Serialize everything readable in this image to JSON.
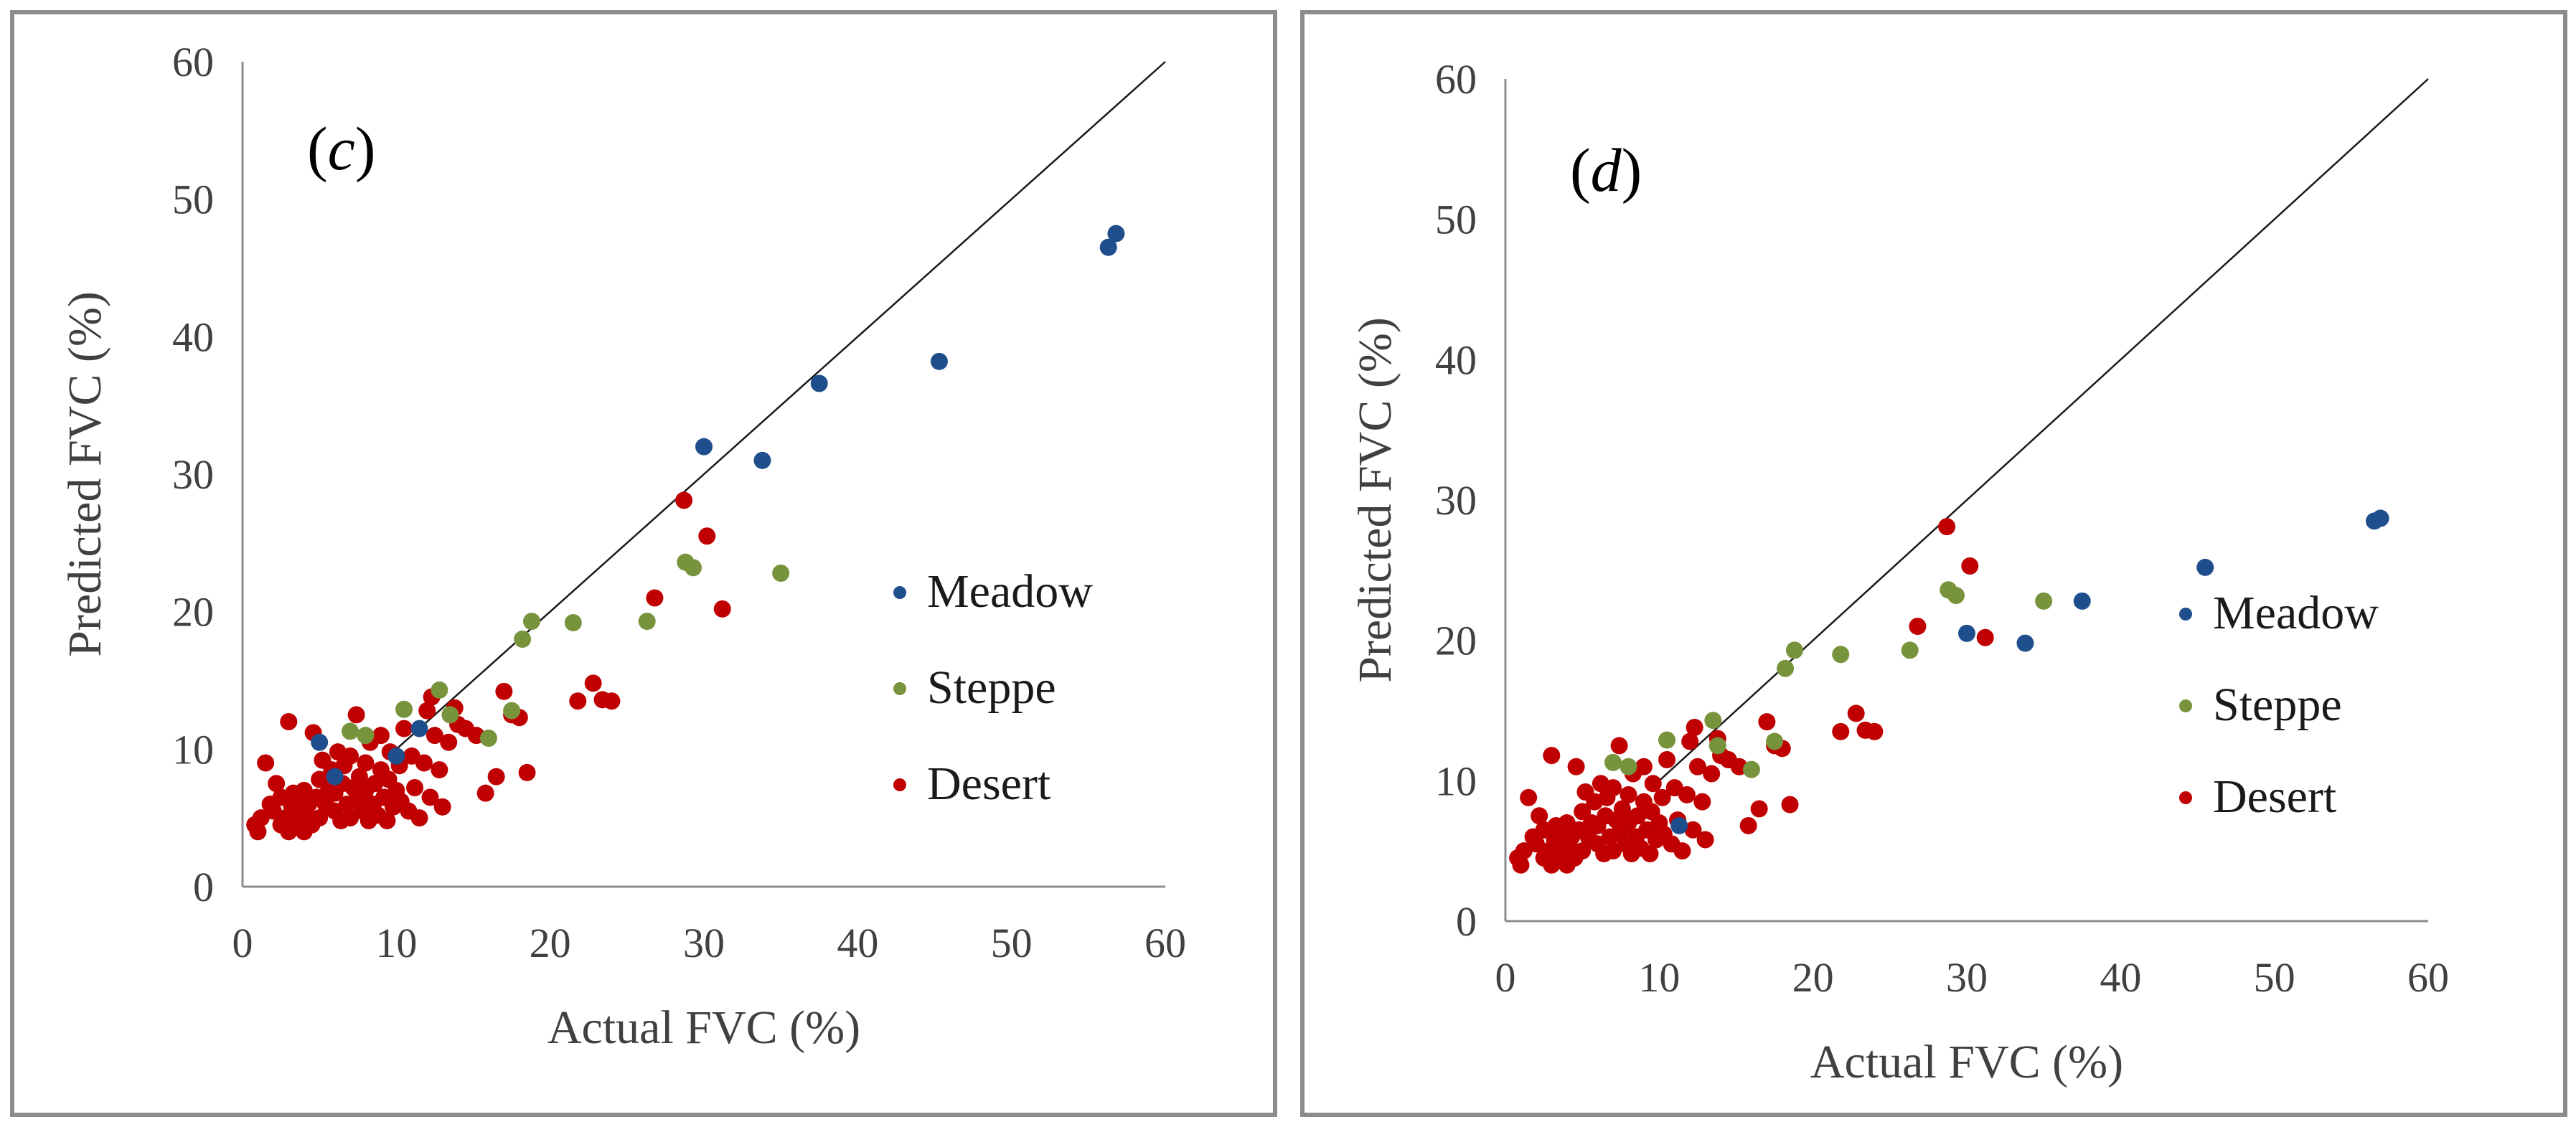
{
  "chart_data": [
    {
      "type": "scatter",
      "panel_label": "(c)",
      "xlabel": "Actual  FVC (%)",
      "ylabel": "Predicted  FVC (%)",
      "xlim": [
        0,
        60
      ],
      "ylim": [
        0,
        60
      ],
      "xticks": [
        "0",
        "10",
        "20",
        "30",
        "40",
        "50",
        "60"
      ],
      "yticks": [
        "0",
        "10",
        "20",
        "30",
        "40",
        "50",
        "60"
      ],
      "grid": false,
      "legend_position": "right",
      "reference_line": {
        "from": [
          10,
          10
        ],
        "to": [
          60,
          60
        ]
      },
      "series": [
        {
          "name": "Meadow",
          "color": "#1f4e8c",
          "points": [
            [
              5.0,
              10.5
            ],
            [
              6.0,
              8.0
            ],
            [
              10.0,
              9.5
            ],
            [
              11.5,
              11.5
            ],
            [
              30.0,
              32.0
            ],
            [
              33.8,
              31.0
            ],
            [
              37.5,
              36.6
            ],
            [
              45.3,
              38.2
            ],
            [
              56.3,
              46.5
            ],
            [
              56.8,
              47.5
            ]
          ]
        },
        {
          "name": "Steppe",
          "color": "#77933c",
          "points": [
            [
              7.0,
              11.3
            ],
            [
              8.0,
              11.0
            ],
            [
              10.5,
              12.9
            ],
            [
              12.8,
              14.3
            ],
            [
              13.5,
              12.5
            ],
            [
              16.0,
              10.8
            ],
            [
              17.5,
              12.8
            ],
            [
              18.2,
              18.0
            ],
            [
              18.8,
              19.3
            ],
            [
              21.5,
              19.2
            ],
            [
              26.3,
              19.3
            ],
            [
              28.8,
              23.6
            ],
            [
              29.3,
              23.2
            ],
            [
              35.0,
              22.8
            ]
          ]
        },
        {
          "name": "Desert",
          "color": "#c00000",
          "points": [
            [
              0.8,
              4.5
            ],
            [
              1.0,
              4.0
            ],
            [
              1.2,
              5.0
            ],
            [
              1.5,
              9.0
            ],
            [
              1.8,
              6.0
            ],
            [
              2.0,
              5.5
            ],
            [
              2.2,
              7.5
            ],
            [
              2.5,
              4.5
            ],
            [
              2.5,
              6.5
            ],
            [
              2.8,
              5.0
            ],
            [
              3.0,
              4.0
            ],
            [
              3.0,
              12.0
            ],
            [
              3.2,
              5.8
            ],
            [
              3.3,
              6.8
            ],
            [
              3.5,
              4.5
            ],
            [
              3.6,
              5.5
            ],
            [
              3.8,
              6.2
            ],
            [
              4.0,
              4.0
            ],
            [
              4.0,
              7.0
            ],
            [
              4.2,
              5.2
            ],
            [
              4.3,
              6.0
            ],
            [
              4.5,
              4.5
            ],
            [
              4.6,
              11.2
            ],
            [
              4.8,
              6.5
            ],
            [
              5.0,
              5.0
            ],
            [
              5.0,
              7.8
            ],
            [
              5.2,
              9.2
            ],
            [
              5.4,
              6.0
            ],
            [
              5.6,
              7.0
            ],
            [
              5.8,
              8.5
            ],
            [
              6.0,
              5.5
            ],
            [
              6.0,
              6.8
            ],
            [
              6.2,
              9.8
            ],
            [
              6.4,
              4.8
            ],
            [
              6.5,
              7.5
            ],
            [
              6.6,
              8.8
            ],
            [
              6.8,
              6.0
            ],
            [
              7.0,
              5.0
            ],
            [
              7.0,
              9.5
            ],
            [
              7.2,
              7.2
            ],
            [
              7.4,
              12.5
            ],
            [
              7.5,
              6.5
            ],
            [
              7.6,
              8.0
            ],
            [
              7.8,
              5.5
            ],
            [
              8.0,
              7.0
            ],
            [
              8.0,
              9.0
            ],
            [
              8.2,
              4.8
            ],
            [
              8.3,
              10.5
            ],
            [
              8.5,
              6.0
            ],
            [
              8.6,
              7.5
            ],
            [
              8.8,
              5.2
            ],
            [
              9.0,
              8.5
            ],
            [
              9.0,
              11.0
            ],
            [
              9.2,
              6.5
            ],
            [
              9.4,
              4.8
            ],
            [
              9.5,
              7.8
            ],
            [
              9.6,
              9.8
            ],
            [
              9.8,
              5.8
            ],
            [
              10.0,
              7.0
            ],
            [
              10.2,
              8.8
            ],
            [
              10.3,
              6.2
            ],
            [
              10.5,
              11.5
            ],
            [
              10.8,
              5.5
            ],
            [
              11.0,
              9.5
            ],
            [
              11.2,
              7.2
            ],
            [
              11.5,
              5.0
            ],
            [
              11.8,
              9.0
            ],
            [
              12.0,
              12.8
            ],
            [
              12.2,
              6.5
            ],
            [
              12.3,
              13.8
            ],
            [
              12.5,
              11.0
            ],
            [
              12.8,
              8.5
            ],
            [
              13.0,
              5.8
            ],
            [
              13.4,
              10.5
            ],
            [
              13.8,
              13.0
            ],
            [
              14.0,
              11.8
            ],
            [
              14.5,
              11.5
            ],
            [
              15.2,
              11.0
            ],
            [
              15.8,
              6.8
            ],
            [
              16.5,
              8.0
            ],
            [
              17.0,
              14.2
            ],
            [
              17.5,
              12.5
            ],
            [
              18.0,
              12.3
            ],
            [
              18.5,
              8.3
            ],
            [
              21.8,
              13.5
            ],
            [
              22.8,
              14.8
            ],
            [
              23.4,
              13.6
            ],
            [
              24.0,
              13.5
            ],
            [
              26.8,
              21.0
            ],
            [
              28.7,
              28.1
            ],
            [
              30.2,
              25.5
            ],
            [
              31.2,
              20.2
            ]
          ]
        }
      ]
    },
    {
      "type": "scatter",
      "panel_label": "(d)",
      "xlabel": "Actual  FVC (%)",
      "ylabel": "Predicted  FVC (%)",
      "xlim": [
        0,
        60
      ],
      "ylim": [
        0,
        60
      ],
      "xticks": [
        "0",
        "10",
        "20",
        "30",
        "40",
        "50",
        "60"
      ],
      "yticks": [
        "0",
        "10",
        "20",
        "30",
        "40",
        "50",
        "60"
      ],
      "grid": false,
      "legend_position": "right",
      "reference_line": {
        "from": [
          10,
          10
        ],
        "to": [
          60,
          60
        ]
      },
      "series": [
        {
          "name": "Meadow",
          "color": "#1f4e8c",
          "points": [
            [
              11.3,
              6.8
            ],
            [
              30.0,
              20.5
            ],
            [
              33.8,
              19.8
            ],
            [
              37.5,
              22.8
            ],
            [
              45.5,
              25.2
            ],
            [
              56.5,
              28.5
            ],
            [
              56.9,
              28.7
            ]
          ]
        },
        {
          "name": "Steppe",
          "color": "#77933c",
          "points": [
            [
              7.0,
              11.3
            ],
            [
              8.0,
              11.0
            ],
            [
              10.5,
              12.9
            ],
            [
              13.5,
              14.3
            ],
            [
              13.8,
              12.5
            ],
            [
              16.0,
              10.8
            ],
            [
              17.5,
              12.8
            ],
            [
              18.2,
              18.0
            ],
            [
              18.8,
              19.3
            ],
            [
              21.8,
              19.0
            ],
            [
              26.3,
              19.3
            ],
            [
              28.8,
              23.6
            ],
            [
              29.3,
              23.2
            ],
            [
              35.0,
              22.8
            ]
          ]
        },
        {
          "name": "Desert",
          "color": "#c00000",
          "points": [
            [
              0.8,
              4.5
            ],
            [
              1.0,
              4.0
            ],
            [
              1.2,
              5.0
            ],
            [
              1.5,
              8.8
            ],
            [
              1.8,
              6.0
            ],
            [
              2.0,
              5.5
            ],
            [
              2.2,
              7.5
            ],
            [
              2.5,
              4.5
            ],
            [
              2.5,
              6.5
            ],
            [
              2.8,
              5.0
            ],
            [
              3.0,
              4.0
            ],
            [
              3.0,
              11.8
            ],
            [
              3.2,
              5.8
            ],
            [
              3.3,
              6.8
            ],
            [
              3.5,
              4.5
            ],
            [
              3.6,
              5.5
            ],
            [
              3.8,
              6.2
            ],
            [
              4.0,
              4.0
            ],
            [
              4.0,
              7.0
            ],
            [
              4.2,
              5.2
            ],
            [
              4.3,
              6.0
            ],
            [
              4.5,
              4.5
            ],
            [
              4.6,
              11.0
            ],
            [
              4.8,
              6.5
            ],
            [
              5.0,
              5.0
            ],
            [
              5.0,
              7.8
            ],
            [
              5.2,
              9.2
            ],
            [
              5.4,
              6.0
            ],
            [
              5.6,
              7.0
            ],
            [
              5.8,
              8.5
            ],
            [
              6.0,
              5.5
            ],
            [
              6.0,
              6.8
            ],
            [
              6.2,
              9.8
            ],
            [
              6.4,
              4.8
            ],
            [
              6.5,
              7.5
            ],
            [
              6.6,
              8.8
            ],
            [
              6.8,
              6.0
            ],
            [
              7.0,
              5.0
            ],
            [
              7.0,
              9.5
            ],
            [
              7.2,
              7.2
            ],
            [
              7.4,
              12.5
            ],
            [
              7.5,
              6.5
            ],
            [
              7.6,
              8.0
            ],
            [
              7.8,
              5.5
            ],
            [
              8.0,
              7.0
            ],
            [
              8.0,
              9.0
            ],
            [
              8.2,
              4.8
            ],
            [
              8.3,
              10.5
            ],
            [
              8.5,
              6.0
            ],
            [
              8.6,
              7.5
            ],
            [
              8.8,
              5.2
            ],
            [
              9.0,
              8.5
            ],
            [
              9.0,
              11.0
            ],
            [
              9.2,
              6.5
            ],
            [
              9.4,
              4.8
            ],
            [
              9.5,
              7.8
            ],
            [
              9.6,
              9.8
            ],
            [
              9.8,
              5.8
            ],
            [
              10.0,
              7.0
            ],
            [
              10.2,
              8.8
            ],
            [
              10.3,
              6.2
            ],
            [
              10.5,
              11.5
            ],
            [
              10.8,
              5.5
            ],
            [
              11.0,
              9.5
            ],
            [
              11.2,
              7.2
            ],
            [
              11.5,
              5.0
            ],
            [
              11.8,
              9.0
            ],
            [
              12.0,
              12.8
            ],
            [
              12.2,
              6.5
            ],
            [
              12.3,
              13.8
            ],
            [
              12.5,
              11.0
            ],
            [
              12.8,
              8.5
            ],
            [
              13.0,
              5.8
            ],
            [
              13.4,
              10.5
            ],
            [
              13.8,
              13.0
            ],
            [
              14.0,
              11.8
            ],
            [
              14.5,
              11.5
            ],
            [
              15.2,
              11.0
            ],
            [
              15.8,
              6.8
            ],
            [
              16.5,
              8.0
            ],
            [
              17.0,
              14.2
            ],
            [
              17.5,
              12.5
            ],
            [
              18.0,
              12.3
            ],
            [
              18.5,
              8.3
            ],
            [
              21.8,
              13.5
            ],
            [
              22.8,
              14.8
            ],
            [
              23.4,
              13.6
            ],
            [
              24.0,
              13.5
            ],
            [
              26.8,
              21.0
            ],
            [
              28.7,
              28.1
            ],
            [
              30.2,
              25.3
            ],
            [
              31.2,
              20.2
            ]
          ]
        }
      ]
    }
  ]
}
